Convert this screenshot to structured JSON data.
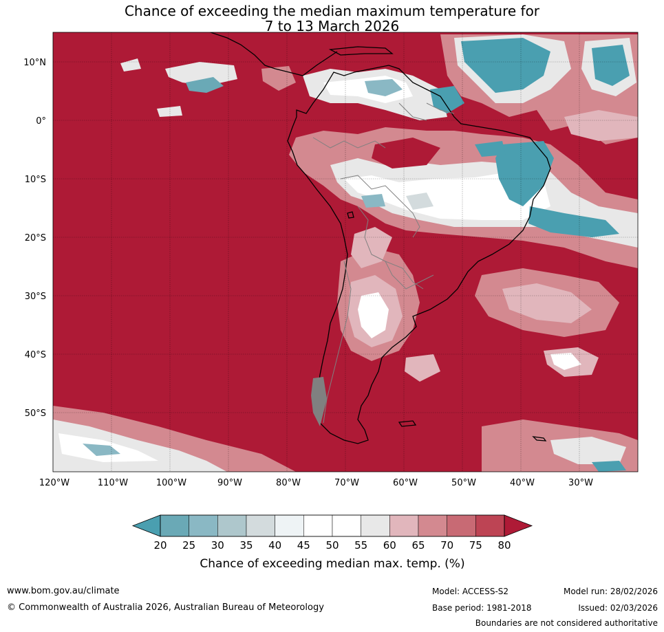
{
  "title": {
    "line1": "Chance of exceeding the median maximum temperature for",
    "line2": "7 to 13 March 2026"
  },
  "map": {
    "lat_labels": [
      "10°N",
      "0°",
      "10°S",
      "20°S",
      "30°S",
      "40°S",
      "50°S"
    ],
    "lon_labels": [
      "120°W",
      "110°W",
      "100°W",
      "90°W",
      "80°W",
      "70°W",
      "60°W",
      "50°W",
      "40°W",
      "30°W"
    ],
    "extent": {
      "lon": [
        -120,
        -20
      ],
      "lat": [
        -60,
        15
      ]
    },
    "background_color": "#ae1a36"
  },
  "colorbar": {
    "tick_labels": [
      "20",
      "25",
      "30",
      "35",
      "40",
      "45",
      "50",
      "55",
      "60",
      "65",
      "70",
      "75",
      "80"
    ],
    "colors": [
      "#4a9fb0",
      "#6aa9b6",
      "#8ab8c4",
      "#aec7cc",
      "#d3dbdd",
      "#eef3f5",
      "#ffffff",
      "#ffffff",
      "#e8e8e8",
      "#e1b6bc",
      "#d38990",
      "#c86a74",
      "#bd4454",
      "#ae1a36"
    ],
    "label": "Chance of exceeding median max. temp. (%)"
  },
  "footer": {
    "url": "www.bom.gov.au/climate",
    "copyright": "© Commonwealth of Australia 2026, Australian Bureau of Meteorology",
    "model": "Model: ACCESS-S2",
    "base_period": "Base period: 1981-2018",
    "model_run": "Model run: 28/02/2026",
    "issued": "Issued: 02/03/2026",
    "disclaimer": "Boundaries are not considered authoritative"
  }
}
